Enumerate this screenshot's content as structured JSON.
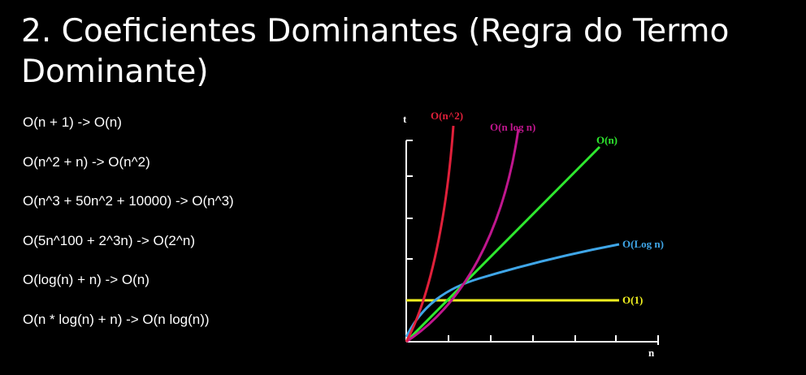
{
  "slide": {
    "title": "2. Coeficientes Dominantes (Regra do Termo Dominante)",
    "rules": [
      "O(n + 1) -> O(n)",
      "O(n^2 + n) -> O(n^2)",
      "O(n^3 + 50n^2 + 10000) -> O(n^3)",
      "O(5n^100 + 2^3n) -> O(2^n)",
      "O(log(n) + n) -> O(n)",
      "O(n * log(n) + n) -> O(n log(n))"
    ]
  },
  "graph": {
    "axis_y_label": "t",
    "axis_x_label": "n",
    "curves": [
      {
        "label": "O(n^2)",
        "color": "#e0203a"
      },
      {
        "label": "O(n log n)",
        "color": "#c0168e"
      },
      {
        "label": "O(n)",
        "color": "#2ee82e"
      },
      {
        "label": "O(Log n)",
        "color": "#3fa6e8"
      },
      {
        "label": "O(1)",
        "color": "#f2f220"
      }
    ]
  }
}
